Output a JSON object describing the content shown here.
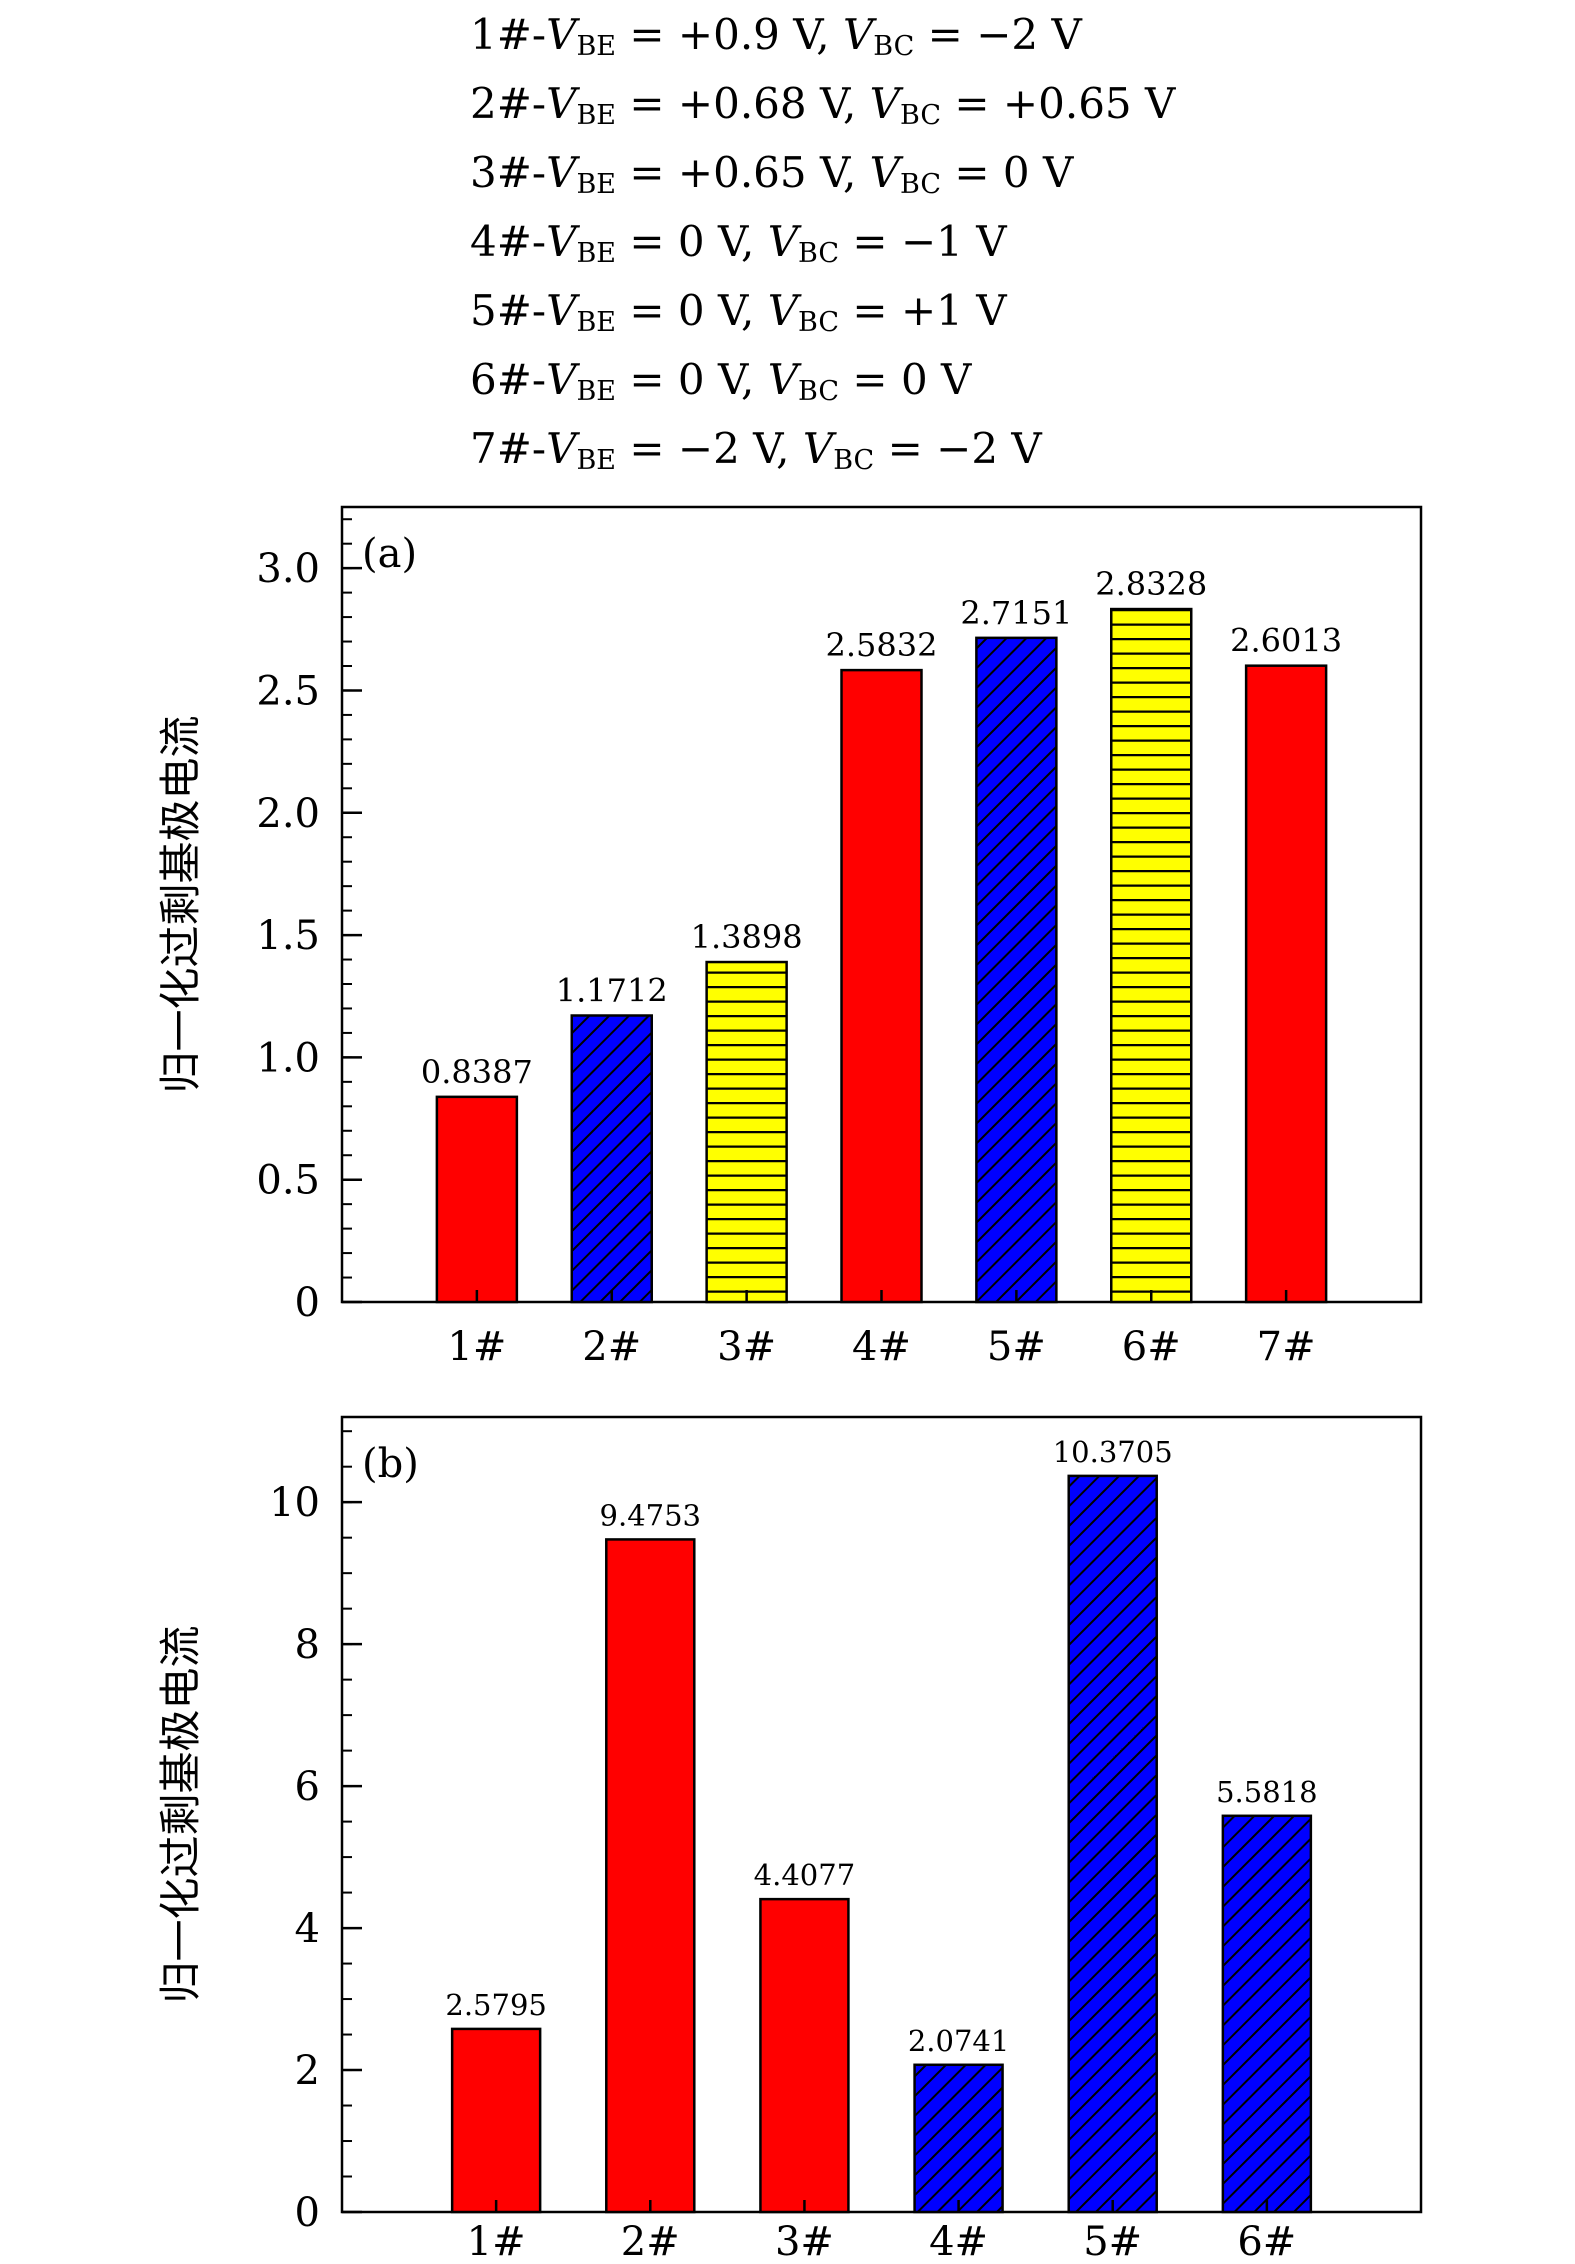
{
  "legend": [
    {
      "prefix": "1#-",
      "vbe": "= +0.9 V, ",
      "vbc": "= −2 V"
    },
    {
      "prefix": "2#-",
      "vbe": "= +0.68 V, ",
      "vbc": "= +0.65 V"
    },
    {
      "prefix": "3#-",
      "vbe": "= +0.65 V, ",
      "vbc": "= 0 V"
    },
    {
      "prefix": "4#-",
      "vbe": "= 0 V, ",
      "vbc": "= −1 V"
    },
    {
      "prefix": "5#-",
      "vbe": "= 0 V, ",
      "vbc": "= +1 V"
    },
    {
      "prefix": "6#-",
      "vbe": "= 0 V, ",
      "vbc": "= 0 V"
    },
    {
      "prefix": "7#-",
      "vbe": "= −2 V, ",
      "vbc": "= −2 V"
    }
  ],
  "symbols": {
    "v": "V",
    "be": "BE",
    "bc": "BC"
  },
  "colors": {
    "red": "#ff0000",
    "blue": "#0000ff",
    "yellow": "#ffff00",
    "hatch": "#000000"
  },
  "chart_data": [
    {
      "type": "bar",
      "panel_label": "(a)",
      "ylabel": "归一化过剩基极电流",
      "categories": [
        "1#",
        "2#",
        "3#",
        "4#",
        "5#",
        "6#",
        "7#"
      ],
      "values": [
        0.8387,
        1.1712,
        1.3898,
        2.5832,
        2.7151,
        2.8328,
        2.6013
      ],
      "value_labels": [
        "0.8387",
        "1.1712",
        "1.3898",
        "2.5832",
        "2.7151",
        "2.8328",
        "2.6013"
      ],
      "fills": [
        "red",
        "blue-diagonal-hatch",
        "yellow-horizontal-hatch",
        "red",
        "blue-diagonal-hatch",
        "yellow-horizontal-hatch",
        "red"
      ],
      "ylim": [
        0,
        3.25
      ],
      "yticks": [
        0,
        0.5,
        1.0,
        1.5,
        2.0,
        2.5,
        3.0
      ],
      "ytick_labels": [
        "0",
        "0.5",
        "1.0",
        "1.5",
        "2.0",
        "2.5",
        "3.0"
      ],
      "minor_step": 0.1,
      "xlim": [
        0,
        8
      ],
      "grid": false
    },
    {
      "type": "bar",
      "panel_label": "(b)",
      "ylabel": "归一化过剩基极电流",
      "categories": [
        "1#",
        "2#",
        "3#",
        "4#",
        "5#",
        "6#"
      ],
      "values": [
        2.5795,
        9.4753,
        4.4077,
        2.0741,
        10.3705,
        5.5818
      ],
      "value_labels": [
        "2.5795",
        "9.4753",
        "4.4077",
        "2.0741",
        "10.3705",
        "5.5818"
      ],
      "fills": [
        "red",
        "red",
        "red",
        "blue-diagonal-hatch",
        "blue-diagonal-hatch",
        "blue-diagonal-hatch"
      ],
      "ylim": [
        0,
        11.2
      ],
      "yticks": [
        0,
        2,
        4,
        6,
        8,
        10
      ],
      "ytick_labels": [
        "0",
        "2",
        "4",
        "6",
        "8",
        "10"
      ],
      "minor_step": 0.5,
      "xlim": [
        0,
        7
      ],
      "grid": false
    }
  ]
}
